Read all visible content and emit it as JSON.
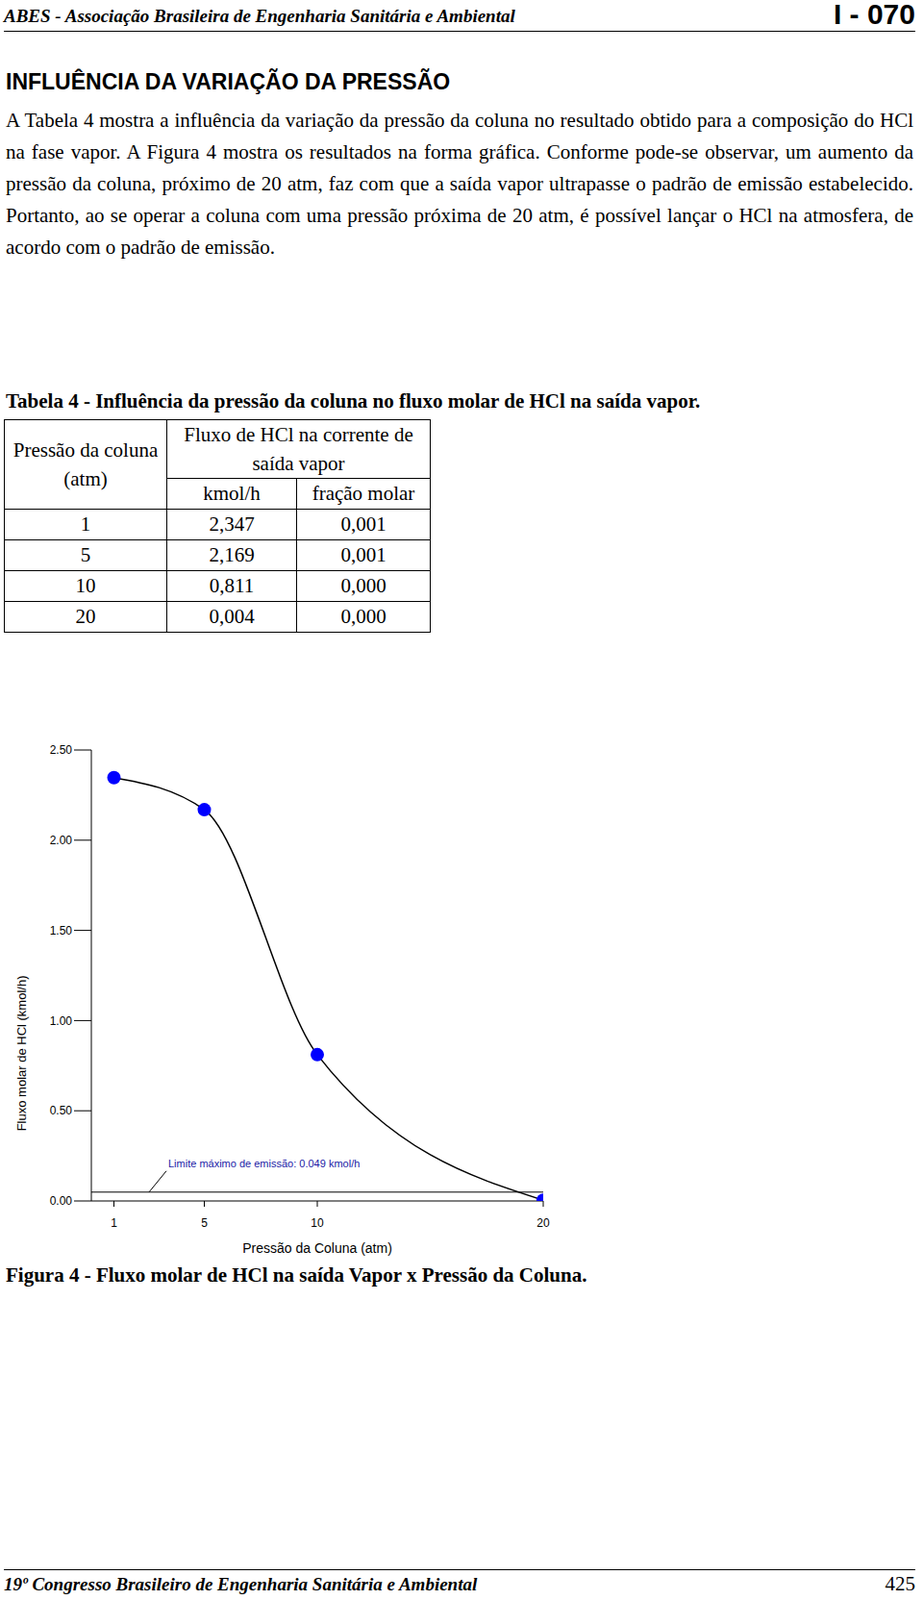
{
  "header": {
    "left": "ABES - Associação Brasileira de Engenharia Sanitária e Ambiental",
    "right": "I - 070"
  },
  "section_title": "INFLUÊNCIA DA VARIAÇÃO DA PRESSÃO",
  "paragraph": "A Tabela 4 mostra a influência da variação da pressão da coluna no resultado obtido para a composição do HCl na fase vapor. A Figura 4 mostra os resultados na forma gráfica. Conforme pode-se observar, um aumento da pressão da coluna, próximo de 20 atm, faz com que a saída vapor ultrapasse o padrão de emissão estabelecido. Portanto, ao se operar a coluna com uma pressão próxima de 20 atm, é possível lançar o HCl na atmosfera, de acordo com o padrão de emissão.",
  "table": {
    "caption": "Tabela 4 - Influência da pressão da coluna no fluxo molar de HCl na saída vapor.",
    "header": [
      "Pressão da coluna (atm)",
      "Fluxo de HCl na corrente de saída vapor"
    ],
    "subheader": [
      "kmol/h",
      "fração molar"
    ],
    "rows": [
      [
        "1",
        "2,347",
        "0,001"
      ],
      [
        "5",
        "2,169",
        "0,001"
      ],
      [
        "10",
        "0,811",
        "0,000"
      ],
      [
        "20",
        "0,004",
        "0,000"
      ]
    ]
  },
  "chart_data": {
    "type": "line",
    "x_label": "Pressão da Coluna (atm)",
    "y_label": "Fluxo molar de HCl (kmol/h)",
    "x": [
      1,
      5,
      10,
      20
    ],
    "values": [
      2.347,
      2.169,
      0.811,
      0.004
    ],
    "color": "#0000ff",
    "marker": "circle",
    "xlim": [
      0,
      20
    ],
    "xticks": [
      1,
      5,
      10,
      20
    ],
    "ylim": [
      0,
      2.5
    ],
    "yticks": [
      {
        "value": 0,
        "label": "0.00"
      },
      {
        "value": 0.5,
        "label": "0.50"
      },
      {
        "value": 1,
        "label": "1.00"
      },
      {
        "value": 1.5,
        "label": "1.50"
      },
      {
        "value": 2,
        "label": "2.00"
      },
      {
        "value": 2.5,
        "label": "2.50"
      }
    ],
    "grid": false,
    "reference_line": {
      "value": 0.049,
      "label": "Limite máximo de emissão: 0.049 kmol/h"
    }
  },
  "figure_caption": "Figura 4 - Fluxo molar de HCl na saída Vapor x Pressão da Coluna.",
  "footer": {
    "left": "19º Congresso Brasileiro de Engenharia Sanitária e Ambiental",
    "right": "425"
  }
}
